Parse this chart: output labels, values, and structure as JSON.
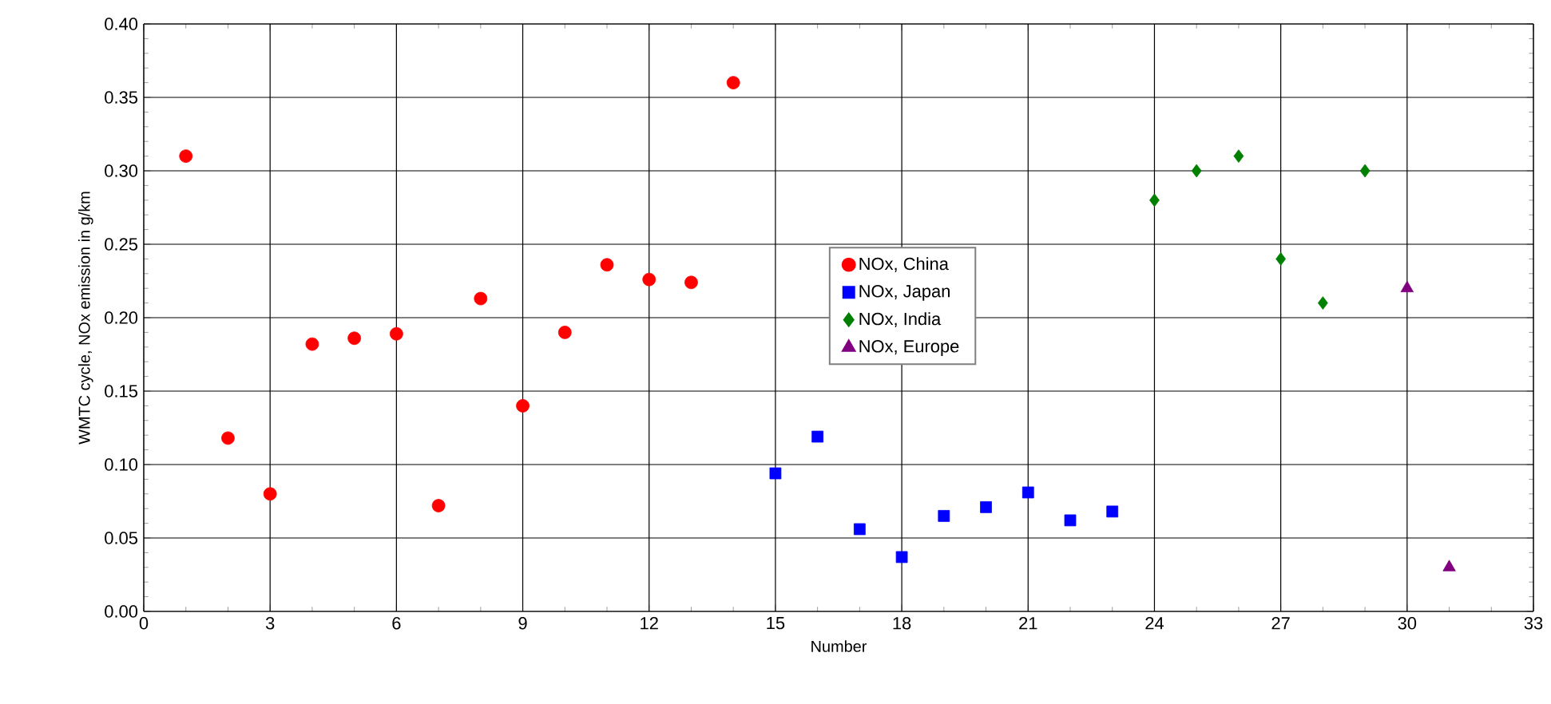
{
  "chart_data": {
    "type": "scatter",
    "xlabel": "Number",
    "ylabel": "WMTC cycle, NOx emission in g/km",
    "xlim": [
      0,
      33
    ],
    "xticks": [
      0,
      3,
      6,
      9,
      12,
      15,
      18,
      21,
      24,
      27,
      30,
      33
    ],
    "ylim": [
      0,
      0.4
    ],
    "yticks": [
      {
        "value": 0,
        "label": "0.00"
      },
      {
        "value": 0.05,
        "label": "0.05"
      },
      {
        "value": 0.1,
        "label": "0.10"
      },
      {
        "value": 0.15,
        "label": "0.15"
      },
      {
        "value": 0.2,
        "label": "0.20"
      },
      {
        "value": 0.25,
        "label": "0.25"
      },
      {
        "value": 0.3,
        "label": "0.30"
      },
      {
        "value": 0.35,
        "label": "0.35"
      },
      {
        "value": 0.4,
        "label": "0.40"
      }
    ],
    "grid": true,
    "legend": "center",
    "series": [
      {
        "name": "NOx, China",
        "color": "#ff0000",
        "marker": "circle",
        "x": [
          1,
          2,
          3,
          4,
          5,
          6,
          7,
          8,
          9,
          10,
          11,
          12,
          13,
          14
        ],
        "values": [
          0.31,
          0.118,
          0.08,
          0.182,
          0.186,
          0.189,
          0.072,
          0.213,
          0.14,
          0.19,
          0.236,
          0.226,
          0.224,
          0.36
        ]
      },
      {
        "name": "NOx, Japan",
        "color": "#0000ff",
        "marker": "square",
        "x": [
          15,
          16,
          17,
          18,
          19,
          20,
          21,
          22,
          23
        ],
        "values": [
          0.094,
          0.119,
          0.056,
          0.037,
          0.065,
          0.071,
          0.081,
          0.062,
          0.068
        ]
      },
      {
        "name": "NOx, India",
        "color": "#008000",
        "marker": "diamond",
        "x": [
          24,
          25,
          26,
          27,
          28,
          29
        ],
        "values": [
          0.28,
          0.3,
          0.31,
          0.24,
          0.21,
          0.3
        ]
      },
      {
        "name": "NOx, Europe",
        "color": "#800080",
        "marker": "triangle",
        "x": [
          30,
          31
        ],
        "values": [
          0.22,
          0.03
        ]
      }
    ]
  }
}
